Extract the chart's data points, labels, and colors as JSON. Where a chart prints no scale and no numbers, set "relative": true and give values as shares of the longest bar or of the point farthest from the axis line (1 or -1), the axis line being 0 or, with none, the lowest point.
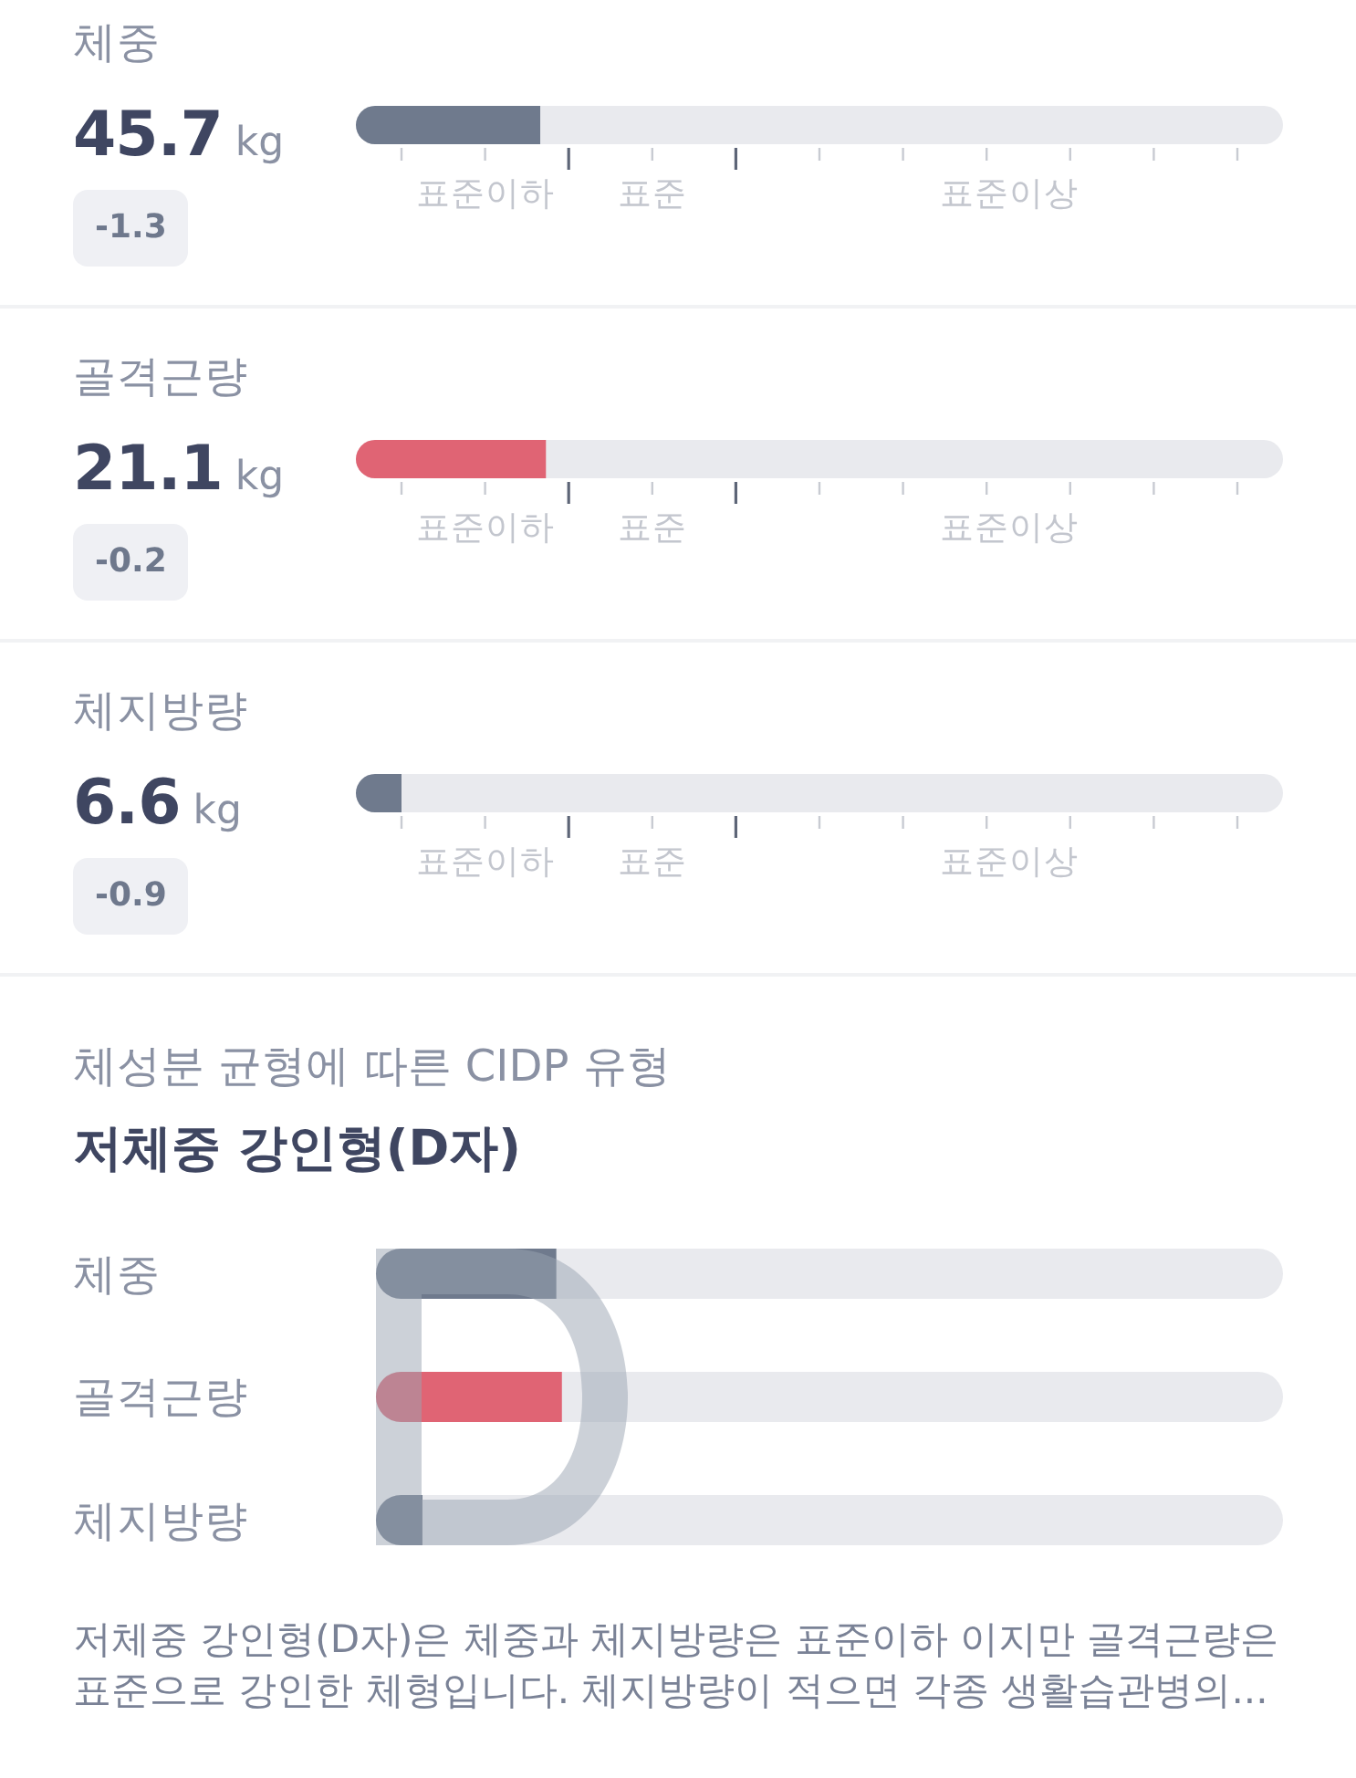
{
  "chart_data": [
    {
      "type": "bar",
      "orientation": "horizontal",
      "relative": true,
      "categories": [
        "체중",
        "골격근량",
        "체지방량"
      ],
      "values": [
        0.97,
        1,
        0.24
      ],
      "colors": [
        "#6f7a8d",
        "#e06474",
        "#6f7a8d"
      ],
      "annotations": [
        "**45.7** kg",
        "-1.3",
        "표준이하",
        "표준",
        "표준이상",
        "**21.1** kg",
        "-0.2",
        "표준이하",
        "표준",
        "표준이상",
        "**6.6** kg",
        "-0.9",
        "표준이하",
        "표준",
        "표준이상"
      ]
    },
    {
      "type": "bar",
      "orientation": "horizontal",
      "relative": true,
      "title": "체성분 균형에 따른 CIDP 유형",
      "subtitle": "저체중 강인형(D자)",
      "categories": [
        "체중",
        "골격근량",
        "체지방량"
      ],
      "values": [
        0.97,
        1,
        0.25
      ],
      "colors": [
        "#6f7a8d",
        "#e06474",
        "#6f7a8d"
      ],
      "annotations": [
        "저체중 강인형(D자)은 체중과 체지방량은 표준이하 이지만 골격근량은 표준으로 강인한 체형입니다. 체지방량이 적으면 각종 생활습관병의..."
      ]
    }
  ]
}
